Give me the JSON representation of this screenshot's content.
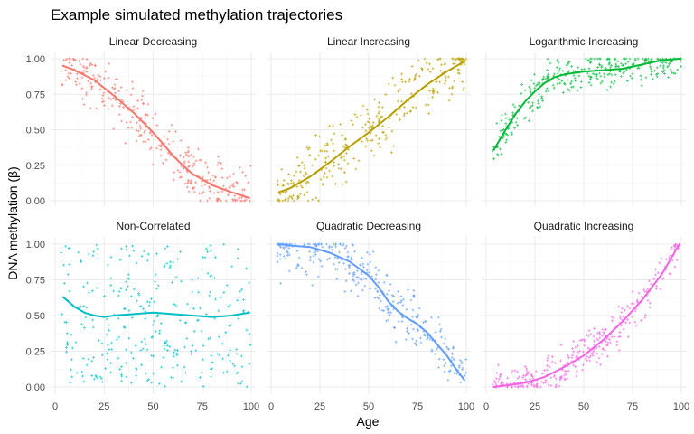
{
  "chart_data": {
    "type": "scatter",
    "title": "Example simulated methylation trajectories",
    "xlabel": "Age",
    "ylabel": "DNA methylation (β)",
    "xlim": [
      0,
      100
    ],
    "ylim": [
      0,
      1
    ],
    "x_ticks": [
      0,
      25,
      50,
      75,
      100
    ],
    "y_ticks": [
      "0.00",
      "0.25",
      "0.50",
      "0.75",
      "1.00"
    ],
    "grid": true,
    "legend": "none",
    "panels": [
      {
        "name": "Linear Decreasing",
        "color": "#F8766D",
        "trend": [
          [
            4,
            0.95
          ],
          [
            10,
            0.92
          ],
          [
            20,
            0.85
          ],
          [
            30,
            0.74
          ],
          [
            40,
            0.62
          ],
          [
            50,
            0.48
          ],
          [
            55,
            0.4
          ],
          [
            60,
            0.32
          ],
          [
            65,
            0.25
          ],
          [
            70,
            0.19
          ],
          [
            75,
            0.15
          ],
          [
            80,
            0.11
          ],
          [
            90,
            0.06
          ],
          [
            99,
            0.02
          ]
        ]
      },
      {
        "name": "Linear Increasing",
        "color": "#B79F00",
        "trend": [
          [
            4,
            0.06
          ],
          [
            10,
            0.09
          ],
          [
            20,
            0.17
          ],
          [
            30,
            0.27
          ],
          [
            40,
            0.38
          ],
          [
            50,
            0.48
          ],
          [
            60,
            0.59
          ],
          [
            70,
            0.71
          ],
          [
            80,
            0.82
          ],
          [
            90,
            0.91
          ],
          [
            99,
            0.98
          ]
        ]
      },
      {
        "name": "Logarithmic Increasing",
        "color": "#00BA38",
        "trend": [
          [
            4,
            0.36
          ],
          [
            10,
            0.5
          ],
          [
            15,
            0.61
          ],
          [
            20,
            0.7
          ],
          [
            25,
            0.77
          ],
          [
            30,
            0.83
          ],
          [
            35,
            0.87
          ],
          [
            40,
            0.89
          ],
          [
            50,
            0.91
          ],
          [
            60,
            0.92
          ],
          [
            70,
            0.93
          ],
          [
            80,
            0.96
          ],
          [
            90,
            0.99
          ],
          [
            99,
            1.0
          ]
        ]
      },
      {
        "name": "Non-Correlated",
        "color": "#00BFC4",
        "trend": [
          [
            4,
            0.63
          ],
          [
            10,
            0.56
          ],
          [
            15,
            0.52
          ],
          [
            20,
            0.5
          ],
          [
            25,
            0.49
          ],
          [
            30,
            0.5
          ],
          [
            40,
            0.51
          ],
          [
            50,
            0.52
          ],
          [
            60,
            0.51
          ],
          [
            70,
            0.5
          ],
          [
            80,
            0.49
          ],
          [
            90,
            0.5
          ],
          [
            99,
            0.52
          ]
        ]
      },
      {
        "name": "Quadratic Decreasing",
        "color": "#619CFF",
        "trend": [
          [
            4,
            1.0
          ],
          [
            10,
            0.99
          ],
          [
            20,
            0.98
          ],
          [
            30,
            0.94
          ],
          [
            40,
            0.88
          ],
          [
            50,
            0.78
          ],
          [
            55,
            0.7
          ],
          [
            60,
            0.6
          ],
          [
            65,
            0.53
          ],
          [
            70,
            0.48
          ],
          [
            75,
            0.44
          ],
          [
            80,
            0.38
          ],
          [
            85,
            0.3
          ],
          [
            90,
            0.22
          ],
          [
            95,
            0.12
          ],
          [
            99,
            0.05
          ]
        ]
      },
      {
        "name": "Quadratic Increasing",
        "color": "#F564E3",
        "trend": [
          [
            4,
            0.0
          ],
          [
            10,
            0.01
          ],
          [
            20,
            0.03
          ],
          [
            30,
            0.07
          ],
          [
            40,
            0.14
          ],
          [
            50,
            0.22
          ],
          [
            60,
            0.33
          ],
          [
            70,
            0.46
          ],
          [
            80,
            0.61
          ],
          [
            90,
            0.79
          ],
          [
            99,
            1.0
          ]
        ]
      }
    ]
  }
}
